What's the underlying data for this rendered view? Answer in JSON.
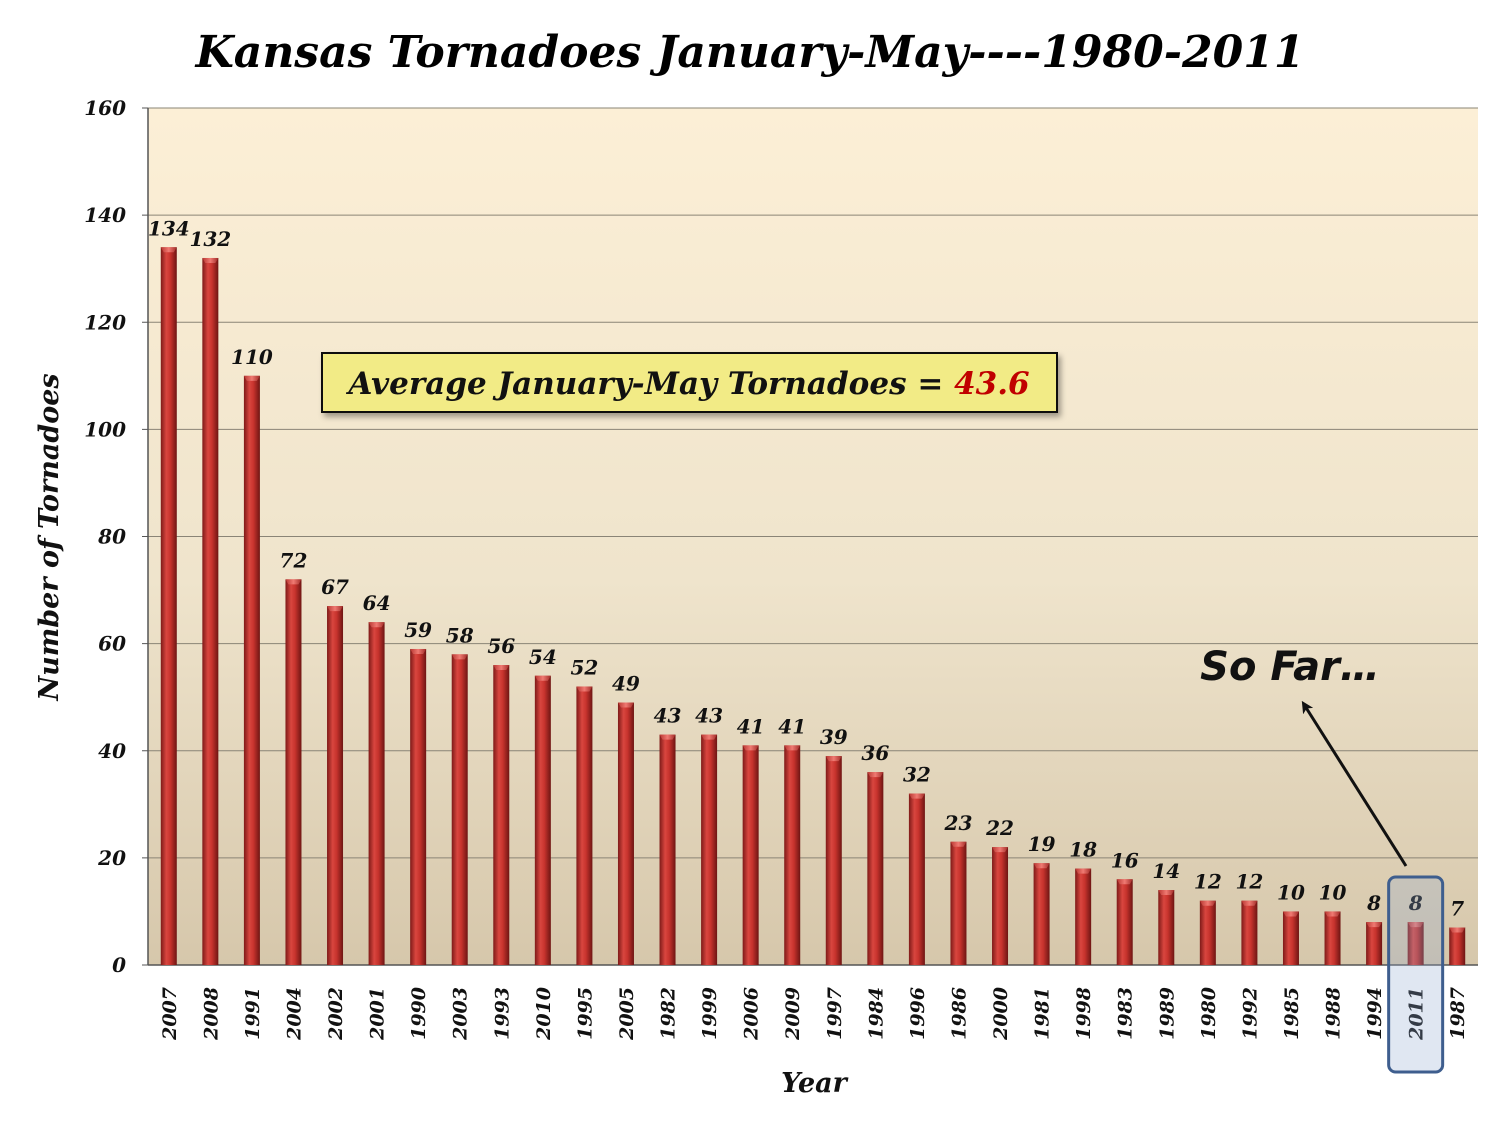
{
  "chart_data": {
    "type": "bar",
    "title": "Kansas Tornadoes January-May----1980-2011",
    "xlabel": "Year",
    "ylabel": "Number of Tornadoes",
    "ylim": [
      0,
      160
    ],
    "yticks": [
      0,
      20,
      40,
      60,
      80,
      100,
      120,
      140,
      160
    ],
    "grid": true,
    "categories": [
      "2007",
      "2008",
      "1991",
      "2004",
      "2002",
      "2001",
      "1990",
      "2003",
      "1993",
      "2010",
      "1995",
      "2005",
      "1982",
      "1999",
      "2006",
      "2009",
      "1997",
      "1984",
      "1996",
      "1986",
      "2000",
      "1981",
      "1998",
      "1983",
      "1989",
      "1980",
      "1992",
      "1985",
      "1988",
      "1994",
      "2011",
      "1987"
    ],
    "values": [
      134,
      132,
      110,
      72,
      67,
      64,
      59,
      58,
      56,
      54,
      52,
      49,
      43,
      43,
      41,
      41,
      39,
      36,
      32,
      23,
      22,
      19,
      18,
      16,
      14,
      12,
      12,
      10,
      10,
      8,
      8,
      7
    ],
    "highlight_category": "2011",
    "annotations": {
      "average_label": "Average January-May Tornadoes = ",
      "average_value": "43.6",
      "so_far": "So Far…"
    }
  },
  "colors": {
    "bar": "#c0302e",
    "bar_highlight": "#a8323f",
    "plot_top": "#fcefd6",
    "plot_bottom": "#d7c8ad",
    "average_value": "#c00000",
    "highlight_box": "#3e5e8e"
  }
}
